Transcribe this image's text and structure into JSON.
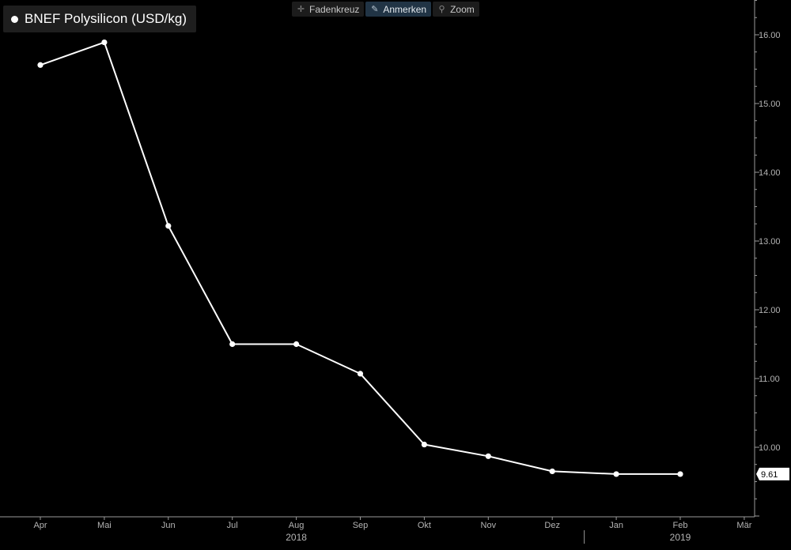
{
  "toolbar": {
    "items": [
      {
        "label": "Fadenkreuz",
        "icon": "crosshair-icon",
        "active": false
      },
      {
        "label": "Anmerken",
        "icon": "pencil-icon",
        "active": true
      },
      {
        "label": "Zoom",
        "icon": "magnifier-icon",
        "active": false
      }
    ]
  },
  "legend": {
    "label": "BNEF Polysilicon (USD/kg)"
  },
  "colors": {
    "background": "#000000",
    "line": "#ffffff",
    "axis": "#9a9a9a",
    "tick_text": "#b4b4b4"
  },
  "chart_data": {
    "type": "line",
    "title": "",
    "xlabel": "",
    "ylabel": "",
    "x_tick_labels": [
      "Apr",
      "Mai",
      "Jun",
      "Jul",
      "Aug",
      "Sep",
      "Okt",
      "Nov",
      "Dez",
      "Jan",
      "Feb",
      "Mär"
    ],
    "year_labels": [
      {
        "label": "2018",
        "center_month": "Aug"
      },
      {
        "label": "2019",
        "center_month": "Feb"
      }
    ],
    "year_separator_before": "Jan",
    "y_ticks": [
      "10.00",
      "11.00",
      "12.00",
      "13.00",
      "14.00",
      "15.00",
      "16.00"
    ],
    "ylim": [
      9.0,
      16.5
    ],
    "y_axis_position": "right",
    "grid": false,
    "legend_position": "top-left",
    "series": [
      {
        "name": "BNEF Polysilicon (USD/kg)",
        "x": [
          "2018-04",
          "2018-05",
          "2018-06",
          "2018-07",
          "2018-08",
          "2018-09",
          "2018-10",
          "2018-11",
          "2018-12",
          "2019-01",
          "2019-02"
        ],
        "values": [
          15.56,
          15.89,
          13.22,
          11.5,
          11.5,
          11.07,
          10.04,
          9.87,
          9.65,
          9.61,
          9.61
        ]
      }
    ],
    "last_value_label": "9.61"
  }
}
